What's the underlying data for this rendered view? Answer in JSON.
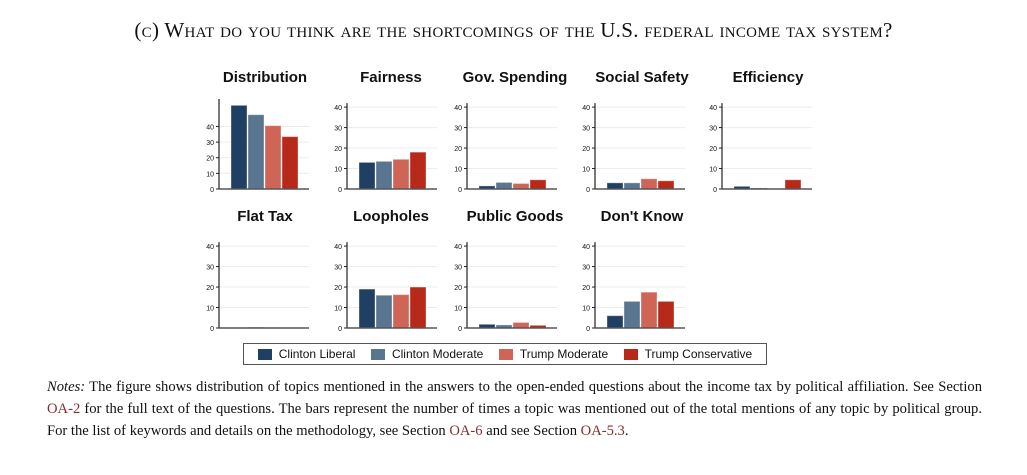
{
  "figure": {
    "title": "(c) What do you think are the shortcomings of the U.S. federal income tax system?"
  },
  "chart_data": {
    "type": "bar",
    "layout": "small-multiples",
    "series_names": [
      "Clinton Liberal",
      "Clinton Moderate",
      "Trump Moderate",
      "Trump Conservative"
    ],
    "colors": [
      "#1f3f63",
      "#5a7590",
      "#cf6557",
      "#b72a1a"
    ],
    "yticks": [
      0,
      10,
      20,
      30,
      40
    ],
    "panels": [
      {
        "title": "Distribution",
        "values": [
          53.5,
          47.5,
          40.5,
          33.5
        ],
        "ylim": [
          0,
          55
        ],
        "yticks": [
          0,
          10,
          20,
          30,
          40
        ]
      },
      {
        "title": "Fairness",
        "values": [
          13,
          13.5,
          14.5,
          18
        ],
        "ylim": [
          0,
          42
        ],
        "yticks": [
          0,
          10,
          20,
          30,
          40
        ]
      },
      {
        "title": "Gov. Spending",
        "values": [
          1.5,
          3.2,
          2.7,
          4.5
        ],
        "ylim": [
          0,
          42
        ],
        "yticks": [
          0,
          10,
          20,
          30,
          40
        ]
      },
      {
        "title": "Social Safety",
        "values": [
          3,
          3,
          5,
          4
        ],
        "ylim": [
          0,
          42
        ],
        "yticks": [
          0,
          10,
          20,
          30,
          40
        ]
      },
      {
        "title": "Efficiency",
        "values": [
          1.3,
          0.5,
          0,
          4.5
        ],
        "ylim": [
          0,
          42
        ],
        "yticks": [
          0,
          10,
          20,
          30,
          40
        ]
      },
      {
        "title": "Flat Tax",
        "values": [
          0.2,
          0.4,
          0.3,
          0
        ],
        "ylim": [
          0,
          42
        ],
        "yticks": [
          0,
          10,
          20,
          30,
          40
        ]
      },
      {
        "title": "Loopholes",
        "values": [
          19,
          16,
          16.3,
          20
        ],
        "ylim": [
          0,
          42
        ],
        "yticks": [
          0,
          10,
          20,
          30,
          40
        ]
      },
      {
        "title": "Public Goods",
        "values": [
          1.8,
          1.5,
          2.7,
          1.3
        ],
        "ylim": [
          0,
          42
        ],
        "yticks": [
          0,
          10,
          20,
          30,
          40
        ]
      },
      {
        "title": "Don't Know",
        "values": [
          6,
          13,
          17.5,
          13
        ],
        "ylim": [
          0,
          42
        ],
        "yticks": [
          0,
          10,
          20,
          30,
          40
        ]
      }
    ],
    "legend": {
      "position": "bottom",
      "entries": [
        "Clinton Liberal",
        "Clinton Moderate",
        "Trump Moderate",
        "Trump Conservative"
      ]
    },
    "grid": true
  },
  "notes": {
    "label": "Notes:",
    "part1": " The figure shows distribution of topics mentioned in the answers to the open-ended questions about the income tax by political affiliation. See Section ",
    "ref1": "OA-2",
    "part2": " for the full text of the questions. The bars represent the number of times a topic was mentioned out of the total mentions of any topic by political group. For the list of keywords and details on the methodology, see Section ",
    "ref2": "OA-6",
    "part3": " and see Section ",
    "ref3": "OA-5.3",
    "part4": "."
  }
}
